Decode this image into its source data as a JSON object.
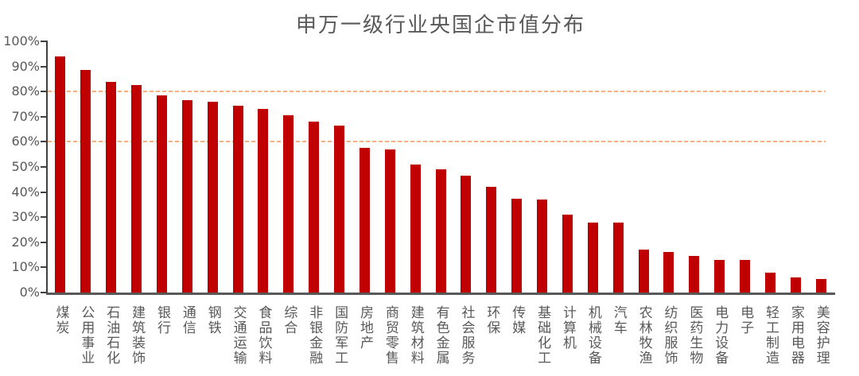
{
  "title": "申万一级行业央国企市值分布",
  "colors": {
    "bar": "#C00000",
    "reference_line": "#F4B183",
    "y_axis": "#404040",
    "x_axis": "#595959",
    "text": "#595959"
  },
  "chart_data": {
    "type": "bar",
    "title": "申万一级行业央国企市值分布",
    "categories": [
      "煤炭",
      "公用事业",
      "石油石化",
      "建筑装饰",
      "银行",
      "通信",
      "钢铁",
      "交通运输",
      "食品饮料",
      "综合",
      "非银金融",
      "国防军工",
      "房地产",
      "商贸零售",
      "建筑材料",
      "有色金属",
      "社会服务",
      "环保",
      "传媒",
      "基础化工",
      "计算机",
      "机械设备",
      "汽车",
      "农林牧渔",
      "纺织服饰",
      "医药生物",
      "电力设备",
      "电子",
      "轻工制造",
      "家用电器",
      "美容护理"
    ],
    "values": [
      94,
      88.5,
      84,
      82.5,
      78.5,
      76.5,
      76,
      74.5,
      73,
      70.5,
      68,
      66.5,
      57.5,
      57,
      51,
      49,
      46.5,
      42,
      37.5,
      37,
      31,
      28,
      28,
      17,
      16,
      14.5,
      13,
      13,
      8,
      6,
      5.5
    ],
    "unit": "%",
    "xlabel": "",
    "ylabel": "",
    "ylim": [
      0,
      100
    ],
    "ytick_step": 10,
    "ytick_labels": [
      "0%",
      "10%",
      "20%",
      "30%",
      "40%",
      "50%",
      "60%",
      "70%",
      "80%",
      "90%",
      "100%"
    ],
    "reference_lines": [
      80,
      60
    ],
    "grid": "off",
    "legend": "none",
    "bar_color": "#C00000",
    "x_label_orientation": "vertical"
  }
}
